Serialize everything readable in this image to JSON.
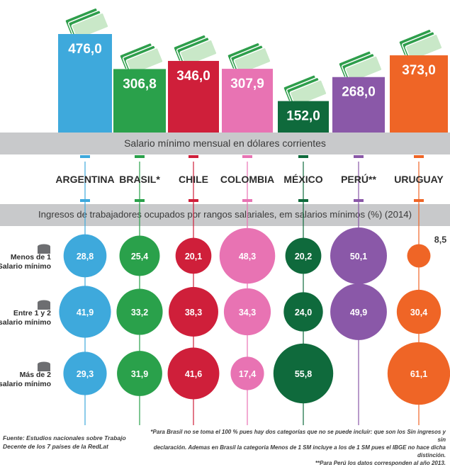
{
  "colors": {
    "ARGENTINA": "#3ea9dc",
    "BRASIL*": "#2aa14b",
    "CHILE": "#cf1f3a",
    "COLOMBIA": "#e873b3",
    "MÉXICO": "#0f6a3c",
    "PERÚ**": "#8a58a8",
    "URUGUAY": "#ef6526",
    "band": "#c8c9cb",
    "money": "#2e9e4b"
  },
  "icons": [
    "money-bills-icon",
    "coins-stack-icon"
  ],
  "chart_data": [
    {
      "type": "bar",
      "title": "Salario mínimo mensual en dólares corrientes",
      "categories": [
        "ARGENTINA",
        "BRASIL*",
        "CHILE",
        "COLOMBIA",
        "MÉXICO",
        "PERÚ**",
        "URUGUAY"
      ],
      "values": [
        476.0,
        306.8,
        346.0,
        307.9,
        152.0,
        268.0,
        373.0
      ],
      "value_labels": [
        "476,0",
        "306,8",
        "346,0",
        "307,9",
        "152,0",
        "268,0",
        "373,0"
      ]
    },
    {
      "type": "scatter",
      "title": "Ingresos de trabajadores ocupados por rangos salariales, em salarios mínimos (%) (2014)",
      "categories": [
        "ARGENTINA",
        "BRASIL*",
        "CHILE",
        "COLOMBIA",
        "MÉXICO",
        "PERÚ**",
        "URUGUAY"
      ],
      "rows": [
        {
          "label": [
            "Menos de 1",
            "Salario mínimo"
          ],
          "values": [
            28.8,
            25.4,
            20.1,
            48.3,
            20.2,
            50.1,
            8.5
          ],
          "value_labels": [
            "28,8",
            "25,4",
            "20,1",
            "48,3",
            "20,2",
            "50,1",
            "8,5"
          ]
        },
        {
          "label": [
            "Entre 1 y 2",
            "salario mínimo"
          ],
          "values": [
            41.9,
            33.2,
            38.3,
            34.3,
            24.0,
            49.9,
            30.4
          ],
          "value_labels": [
            "41,9",
            "33,2",
            "38,3",
            "34,3",
            "24,0",
            "49,9",
            "30,4"
          ]
        },
        {
          "label": [
            "Más de 2",
            "salario mínimo"
          ],
          "values": [
            29.3,
            31.9,
            41.6,
            17.4,
            55.8,
            0,
            61.1
          ],
          "value_labels": [
            "29,3",
            "31,9",
            "41,6",
            "17,4",
            "55,8",
            "",
            "61,1"
          ]
        }
      ]
    }
  ],
  "footer": {
    "source": "Fuente: Estudios nacionales sobre Trabajo Decente de los 7 países de la RedLat",
    "note1": "*Para Brasil no se toma el 100 % pues hay dos categorías que no se puede incluir: que son los Sin ingresos y sin",
    "note2": "declaración. Ademas en Brasil la categoria Menos de 1 SM incluye a los de 1 SM pues el IBGE no hace dicha distinción.",
    "note3": "**Para Perú los datos corresponden al año 2013."
  }
}
